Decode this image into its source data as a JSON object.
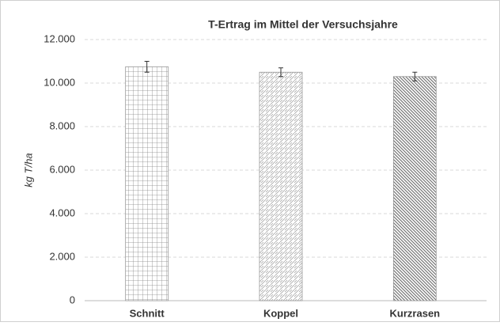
{
  "chart_data": {
    "type": "bar",
    "title": "T-Ertrag im Mittel der Versuchsjahre",
    "y_label": "kg T/ha",
    "categories": [
      "Schnitt",
      "Koppel",
      "Kurzrasen"
    ],
    "values": [
      10750,
      10500,
      10300
    ],
    "errors": [
      250,
      200,
      200
    ],
    "ylim": [
      0,
      12000
    ],
    "yticks": [
      0,
      {
        "value": 2000,
        "label": "2.000"
      },
      {
        "value": 4000,
        "label": "4.000"
      },
      {
        "value": 6000,
        "label": "6.000"
      },
      {
        "value": 8000,
        "label": "8.000"
      },
      {
        "value": 10000,
        "label": "10.000"
      },
      {
        "value": 12000,
        "label": "12.000"
      }
    ],
    "grid": true
  }
}
